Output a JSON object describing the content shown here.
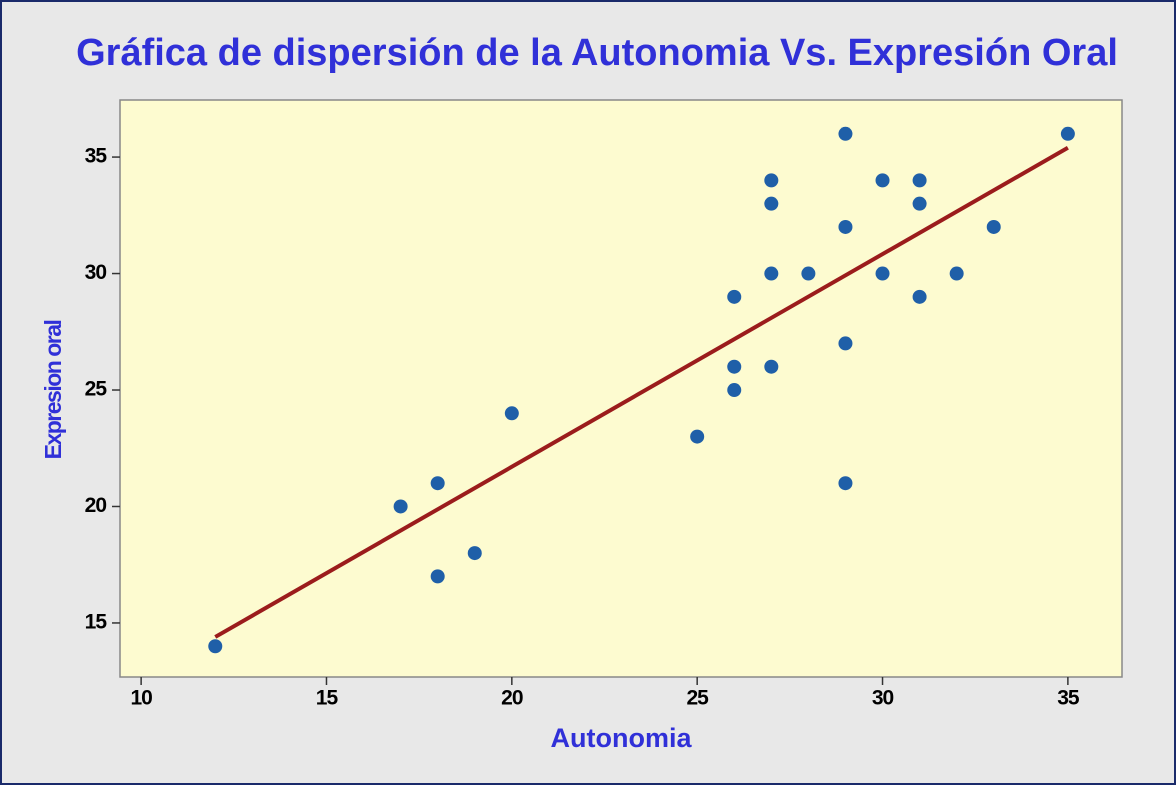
{
  "chart_data": {
    "type": "scatter",
    "title": "Gráfica de dispersión de  la  Autonomia Vs. Expresión Oral",
    "x_label": "Autonomia",
    "y_label": "Expresion oral",
    "series": [
      {
        "color": "#1f5fa8",
        "x": [
          12,
          17,
          18,
          18,
          19,
          20,
          25,
          26,
          26,
          26,
          27,
          27,
          27,
          27,
          28,
          29,
          29,
          29,
          29,
          30,
          30,
          31,
          31,
          31,
          32,
          33,
          35
        ],
        "values": [
          14,
          20,
          21,
          17,
          18,
          24,
          23,
          29,
          26,
          25,
          34,
          33,
          30,
          26,
          30,
          36,
          32,
          27,
          21,
          34,
          30,
          34,
          33,
          29,
          30,
          32,
          36
        ]
      }
    ],
    "fit_line": {
      "color": "#9b1c1c",
      "x": [
        12,
        35
      ],
      "values": [
        14.4,
        35.4
      ]
    },
    "xlim": [
      9.43,
      36.46
    ],
    "ylim": [
      12.68,
      37.45
    ],
    "xticks": [
      10,
      15,
      20,
      25,
      30,
      35
    ],
    "yticks": [
      15,
      20,
      25,
      30,
      35
    ],
    "plot_background": "#fdfbd0",
    "title_color": "#3030d8"
  }
}
